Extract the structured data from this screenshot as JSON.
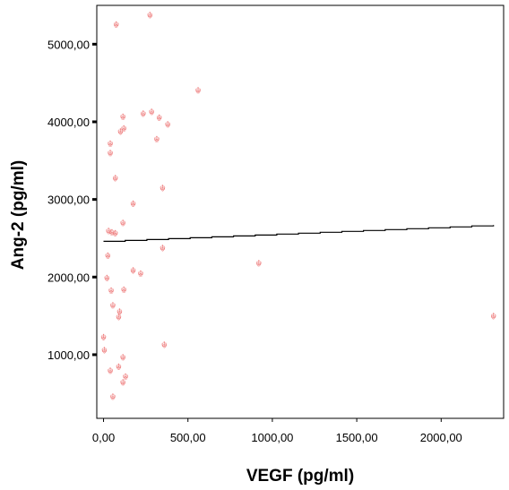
{
  "chart_data": {
    "type": "scatter",
    "title": "",
    "xlabel": "VEGF (pg/ml)",
    "ylabel": "Ang-2 (pg/ml)",
    "xlim": [
      -40,
      2370
    ],
    "ylim": [
      180,
      5500
    ],
    "x_ticks": [
      0,
      500,
      1000,
      1500,
      2000
    ],
    "x_tick_labels": [
      "0,00",
      "500,00",
      "1000,00",
      "1500,00",
      "2000,00"
    ],
    "y_ticks": [
      1000,
      2000,
      3000,
      4000,
      5000
    ],
    "y_tick_labels": [
      "1000,00",
      "2000,00",
      "3000,00",
      "4000,00",
      "5000,00"
    ],
    "grid": false,
    "marker": "symbol",
    "marker_color": "#ee7f7f",
    "line_color": "#000000",
    "points": [
      {
        "x": 75,
        "y": 5260
      },
      {
        "x": 275,
        "y": 5380
      },
      {
        "x": 560,
        "y": 4410
      },
      {
        "x": 235,
        "y": 4110
      },
      {
        "x": 285,
        "y": 4130
      },
      {
        "x": 330,
        "y": 4060
      },
      {
        "x": 380,
        "y": 3970
      },
      {
        "x": 115,
        "y": 4070
      },
      {
        "x": 100,
        "y": 3880
      },
      {
        "x": 120,
        "y": 3920
      },
      {
        "x": 315,
        "y": 3780
      },
      {
        "x": 40,
        "y": 3720
      },
      {
        "x": 40,
        "y": 3600
      },
      {
        "x": 70,
        "y": 3280
      },
      {
        "x": 350,
        "y": 3150
      },
      {
        "x": 175,
        "y": 2950
      },
      {
        "x": 115,
        "y": 2700
      },
      {
        "x": 30,
        "y": 2600
      },
      {
        "x": 50,
        "y": 2580
      },
      {
        "x": 70,
        "y": 2570
      },
      {
        "x": 350,
        "y": 2380
      },
      {
        "x": 25,
        "y": 2280
      },
      {
        "x": 920,
        "y": 2180
      },
      {
        "x": 175,
        "y": 2090
      },
      {
        "x": 220,
        "y": 2050
      },
      {
        "x": 20,
        "y": 1990
      },
      {
        "x": 45,
        "y": 1830
      },
      {
        "x": 120,
        "y": 1840
      },
      {
        "x": 55,
        "y": 1640
      },
      {
        "x": 95,
        "y": 1560
      },
      {
        "x": 90,
        "y": 1490
      },
      {
        "x": 2310,
        "y": 1500
      },
      {
        "x": 0,
        "y": 1230
      },
      {
        "x": 360,
        "y": 1130
      },
      {
        "x": 5,
        "y": 1060
      },
      {
        "x": 115,
        "y": 970
      },
      {
        "x": 90,
        "y": 850
      },
      {
        "x": 40,
        "y": 800
      },
      {
        "x": 130,
        "y": 720
      },
      {
        "x": 115,
        "y": 650
      },
      {
        "x": 55,
        "y": 460
      }
    ],
    "fit_line": [
      {
        "x": 0,
        "y": 2460
      },
      {
        "x": 2310,
        "y": 2670
      }
    ]
  }
}
